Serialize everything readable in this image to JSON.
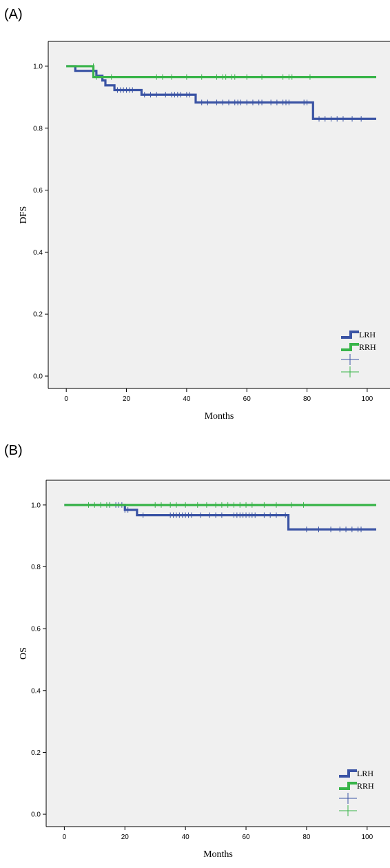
{
  "panels": [
    {
      "label": "(A)",
      "chart_data": {
        "type": "line",
        "title": "",
        "xlabel": "Months",
        "ylabel": "DFS",
        "xlim": [
          -6,
          103
        ],
        "ylim": [
          -0.04,
          1.08
        ],
        "xticks": [
          0,
          20,
          40,
          60,
          80,
          100
        ],
        "yticks": [
          0.0,
          0.2,
          0.4,
          0.6,
          0.8,
          1.0
        ],
        "ytick_labels": [
          "0.0",
          "0.2",
          "0.4",
          "0.6",
          "0.8",
          "1.0"
        ],
        "grid": false,
        "legend": {
          "placement": "bottom-right",
          "entries": [
            "LRH",
            "RRH",
            "",
            ""
          ]
        },
        "series": [
          {
            "name": "LRH",
            "color": "#3a53a4",
            "steps": [
              [
                0,
                1.0
              ],
              [
                3,
                0.985
              ],
              [
                10,
                0.969
              ],
              [
                12,
                0.954
              ],
              [
                13,
                0.938
              ],
              [
                16,
                0.923
              ],
              [
                25,
                0.908
              ],
              [
                43,
                0.883
              ],
              [
                82,
                0.83
              ],
              [
                103,
                0.83
              ]
            ],
            "censored": [
              [
                17,
                0.923
              ],
              [
                18,
                0.923
              ],
              [
                19,
                0.923
              ],
              [
                20,
                0.923
              ],
              [
                21,
                0.923
              ],
              [
                22,
                0.923
              ],
              [
                26,
                0.908
              ],
              [
                28,
                0.908
              ],
              [
                30,
                0.908
              ],
              [
                33,
                0.908
              ],
              [
                35,
                0.908
              ],
              [
                36,
                0.908
              ],
              [
                37,
                0.908
              ],
              [
                38,
                0.908
              ],
              [
                40,
                0.908
              ],
              [
                41,
                0.908
              ],
              [
                45,
                0.883
              ],
              [
                47,
                0.883
              ],
              [
                50,
                0.883
              ],
              [
                52,
                0.883
              ],
              [
                54,
                0.883
              ],
              [
                56,
                0.883
              ],
              [
                57,
                0.883
              ],
              [
                58,
                0.883
              ],
              [
                60,
                0.883
              ],
              [
                62,
                0.883
              ],
              [
                64,
                0.883
              ],
              [
                65,
                0.883
              ],
              [
                68,
                0.883
              ],
              [
                70,
                0.883
              ],
              [
                72,
                0.883
              ],
              [
                73,
                0.883
              ],
              [
                74,
                0.883
              ],
              [
                79,
                0.883
              ],
              [
                80,
                0.883
              ],
              [
                84,
                0.83
              ],
              [
                86,
                0.83
              ],
              [
                88,
                0.83
              ],
              [
                90,
                0.83
              ],
              [
                92,
                0.83
              ],
              [
                95,
                0.83
              ],
              [
                98,
                0.83
              ]
            ]
          },
          {
            "name": "RRH",
            "color": "#38b449",
            "steps": [
              [
                0,
                1.0
              ],
              [
                9,
                0.965
              ],
              [
                103,
                0.965
              ]
            ],
            "censored": [
              [
                9,
                1.0
              ],
              [
                10,
                0.965
              ],
              [
                15,
                0.965
              ],
              [
                30,
                0.965
              ],
              [
                32,
                0.965
              ],
              [
                35,
                0.965
              ],
              [
                40,
                0.965
              ],
              [
                45,
                0.965
              ],
              [
                50,
                0.965
              ],
              [
                52,
                0.965
              ],
              [
                53,
                0.965
              ],
              [
                55,
                0.965
              ],
              [
                56,
                0.965
              ],
              [
                60,
                0.965
              ],
              [
                65,
                0.965
              ],
              [
                72,
                0.965
              ],
              [
                74,
                0.965
              ],
              [
                75,
                0.965
              ],
              [
                81,
                0.965
              ]
            ]
          }
        ]
      }
    },
    {
      "label": "(B)",
      "chart_data": {
        "type": "line",
        "title": "",
        "xlabel": "Months",
        "ylabel": "OS",
        "xlim": [
          -6,
          103
        ],
        "ylim": [
          -0.04,
          1.08
        ],
        "xticks": [
          0,
          20,
          40,
          60,
          80,
          100
        ],
        "yticks": [
          0.0,
          0.2,
          0.4,
          0.6,
          0.8,
          1.0
        ],
        "ytick_labels": [
          "0.0",
          "0.2",
          "0.4",
          "0.6",
          "0.8",
          "1.0"
        ],
        "grid": false,
        "legend": {
          "placement": "bottom-right",
          "entries": [
            "LRH",
            "RRH",
            "",
            ""
          ]
        },
        "series": [
          {
            "name": "LRH",
            "color": "#3a53a4",
            "steps": [
              [
                0,
                1.0
              ],
              [
                20,
                0.984
              ],
              [
                24,
                0.967
              ],
              [
                74,
                0.921
              ],
              [
                103,
                0.921
              ]
            ],
            "censored": [
              [
                15,
                1.0
              ],
              [
                17,
                1.0
              ],
              [
                18,
                1.0
              ],
              [
                19,
                1.0
              ],
              [
                20,
                0.984
              ],
              [
                21,
                0.984
              ],
              [
                26,
                0.967
              ],
              [
                35,
                0.967
              ],
              [
                36,
                0.967
              ],
              [
                37,
                0.967
              ],
              [
                38,
                0.967
              ],
              [
                39,
                0.967
              ],
              [
                40,
                0.967
              ],
              [
                41,
                0.967
              ],
              [
                42,
                0.967
              ],
              [
                45,
                0.967
              ],
              [
                48,
                0.967
              ],
              [
                50,
                0.967
              ],
              [
                52,
                0.967
              ],
              [
                56,
                0.967
              ],
              [
                57,
                0.967
              ],
              [
                58,
                0.967
              ],
              [
                59,
                0.967
              ],
              [
                60,
                0.967
              ],
              [
                61,
                0.967
              ],
              [
                62,
                0.967
              ],
              [
                63,
                0.967
              ],
              [
                66,
                0.967
              ],
              [
                68,
                0.967
              ],
              [
                70,
                0.967
              ],
              [
                73,
                0.967
              ],
              [
                80,
                0.921
              ],
              [
                84,
                0.921
              ],
              [
                88,
                0.921
              ],
              [
                91,
                0.921
              ],
              [
                93,
                0.921
              ],
              [
                95,
                0.921
              ],
              [
                97,
                0.921
              ],
              [
                98,
                0.921
              ]
            ]
          },
          {
            "name": "RRH",
            "color": "#38b449",
            "steps": [
              [
                0,
                1.0
              ],
              [
                103,
                1.0
              ]
            ],
            "censored": [
              [
                8,
                1.0
              ],
              [
                10,
                1.0
              ],
              [
                12,
                1.0
              ],
              [
                14,
                1.0
              ],
              [
                15,
                1.0
              ],
              [
                30,
                1.0
              ],
              [
                32,
                1.0
              ],
              [
                35,
                1.0
              ],
              [
                37,
                1.0
              ],
              [
                40,
                1.0
              ],
              [
                44,
                1.0
              ],
              [
                47,
                1.0
              ],
              [
                50,
                1.0
              ],
              [
                52,
                1.0
              ],
              [
                54,
                1.0
              ],
              [
                56,
                1.0
              ],
              [
                58,
                1.0
              ],
              [
                60,
                1.0
              ],
              [
                62,
                1.0
              ],
              [
                66,
                1.0
              ],
              [
                70,
                1.0
              ],
              [
                75,
                1.0
              ],
              [
                79,
                1.0
              ]
            ]
          }
        ]
      }
    }
  ]
}
